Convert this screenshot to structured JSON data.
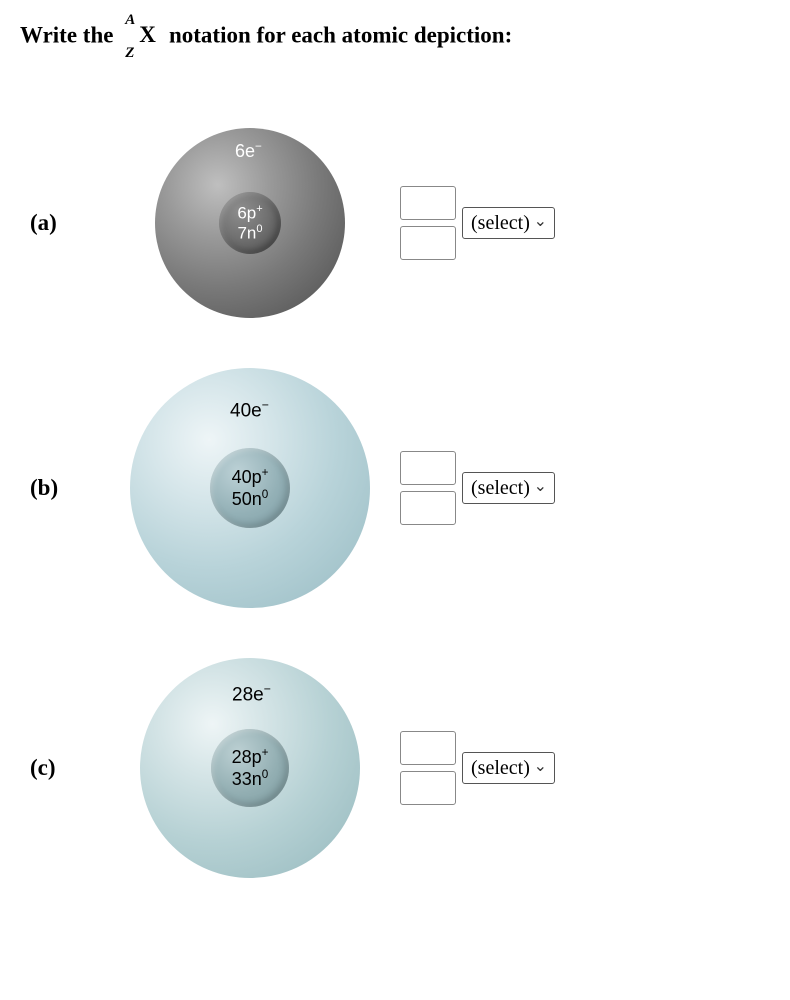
{
  "prompt": {
    "before": "Write the ",
    "A": "A",
    "Z": "Z",
    "X": "X",
    "after": " notation for each atomic depiction:"
  },
  "select_placeholder": "(select)",
  "items": [
    {
      "label": "(a)",
      "electrons": "6e",
      "electrons_sup": "−",
      "protons": "6p",
      "protons_sup": "+",
      "neutrons": "7n",
      "neutrons_sup": "0",
      "atom_class": "atom-a",
      "nucleus_class": "nuc-a",
      "electrons_class": "e-a"
    },
    {
      "label": "(b)",
      "electrons": "40e",
      "electrons_sup": "−",
      "protons": "40p",
      "protons_sup": "+",
      "neutrons": "50n",
      "neutrons_sup": "0",
      "atom_class": "atom-b",
      "nucleus_class": "nuc-b",
      "electrons_class": "e-b"
    },
    {
      "label": "(c)",
      "electrons": "28e",
      "electrons_sup": "−",
      "protons": "28p",
      "protons_sup": "+",
      "neutrons": "33n",
      "neutrons_sup": "0",
      "atom_class": "atom-c",
      "nucleus_class": "nuc-c",
      "electrons_class": "e-c"
    }
  ]
}
